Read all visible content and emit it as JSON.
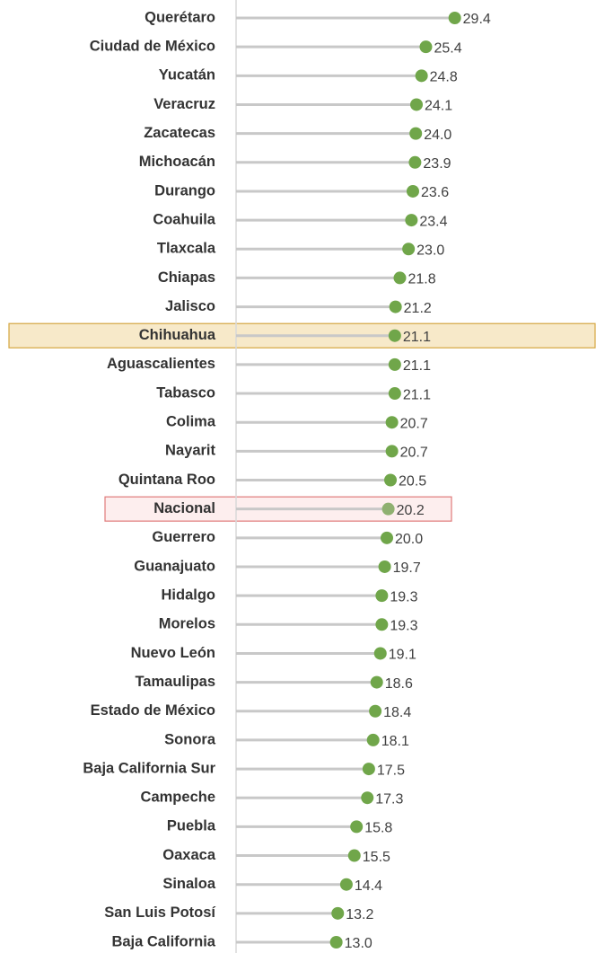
{
  "chart_data": {
    "type": "lollipop",
    "categories": [
      "Querétaro",
      "Ciudad de México",
      "Yucatán",
      "Veracruz",
      "Zacatecas",
      "Michoacán",
      "Durango",
      "Coahuila",
      "Tlaxcala",
      "Chiapas",
      "Jalisco",
      "Chihuahua",
      "Aguascalientes",
      "Tabasco",
      "Colima",
      "Nayarit",
      "Quintana Roo",
      "Nacional",
      "Guerrero",
      "Guanajuato",
      "Hidalgo",
      "Morelos",
      "Nuevo León",
      "Tamaulipas",
      "Estado de México",
      "Sonora",
      "Baja California Sur",
      "Campeche",
      "Puebla",
      "Oaxaca",
      "Sinaloa",
      "San Luis Potosí",
      "Baja California"
    ],
    "values": [
      29.4,
      25.4,
      24.8,
      24.1,
      24.0,
      23.9,
      23.6,
      23.4,
      23.0,
      21.8,
      21.2,
      21.1,
      21.1,
      21.1,
      20.7,
      20.7,
      20.5,
      20.2,
      20.0,
      19.7,
      19.3,
      19.3,
      19.1,
      18.6,
      18.4,
      18.1,
      17.5,
      17.3,
      15.8,
      15.5,
      14.4,
      13.2,
      13.0
    ],
    "value_labels": [
      "29.4",
      "25.4",
      "24.8",
      "24.1",
      "24.0",
      "23.9",
      "23.6",
      "23.4",
      "23.0",
      "21.8",
      "21.2",
      "21.1",
      "21.1",
      "21.1",
      "20.7",
      "20.7",
      "20.5",
      "20.2",
      "20.0",
      "19.7",
      "19.3",
      "19.3",
      "19.1",
      "18.6",
      "18.4",
      "18.1",
      "17.5",
      "17.3",
      "15.8",
      "15.5",
      "14.4",
      "13.2",
      "13.0"
    ],
    "color": "#70a64a",
    "stem_color": "#c8c8c8",
    "highlights": [
      {
        "index": 11,
        "fill": "#f7e9c9",
        "stroke": "#d4a640"
      },
      {
        "index": 17,
        "fill": "#fdeeee",
        "stroke": "#e07b7b",
        "marker_color": "#8fb070"
      }
    ]
  }
}
